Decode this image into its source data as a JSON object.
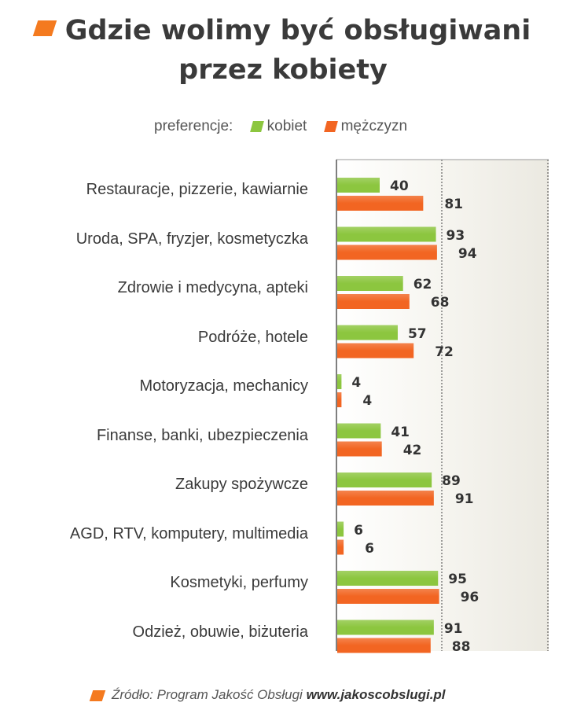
{
  "title_line1": "Gdzie wolimy być obsługiwani",
  "title_line2": "przez kobiety",
  "legend": {
    "prefix": "preferencje:"
  },
  "source": {
    "label": "Źródło: Program Jakość Obsługi",
    "url": "www.jakoscobslugi.pl"
  },
  "colors": {
    "kobiet": "#8cc63f",
    "mezczyzn": "#f26522",
    "accent": "#f47a1f"
  },
  "chart_data": {
    "type": "bar",
    "orientation": "horizontal",
    "categories": [
      "Restauracje, pizzerie, kawiarnie",
      "Uroda, SPA, fryzjer, kosmetyczka",
      "Zdrowie i medycyna,  apteki",
      "Podróże, hotele",
      "Motoryzacja, mechanicy",
      "Finanse, banki,  ubezpieczenia",
      "Zakupy spożywcze",
      "AGD, RTV, komputery, multimedia",
      "Kosmetyki, perfumy",
      "Odzież, obuwie, biżuteria"
    ],
    "series": [
      {
        "name": "kobiet",
        "values": [
          40,
          93,
          62,
          57,
          4,
          41,
          89,
          6,
          95,
          91
        ]
      },
      {
        "name": "mężczyzn",
        "values": [
          81,
          94,
          68,
          72,
          4,
          42,
          91,
          6,
          96,
          88
        ]
      }
    ],
    "xlim": [
      0,
      200
    ],
    "grid": true,
    "legend_position": "top"
  }
}
